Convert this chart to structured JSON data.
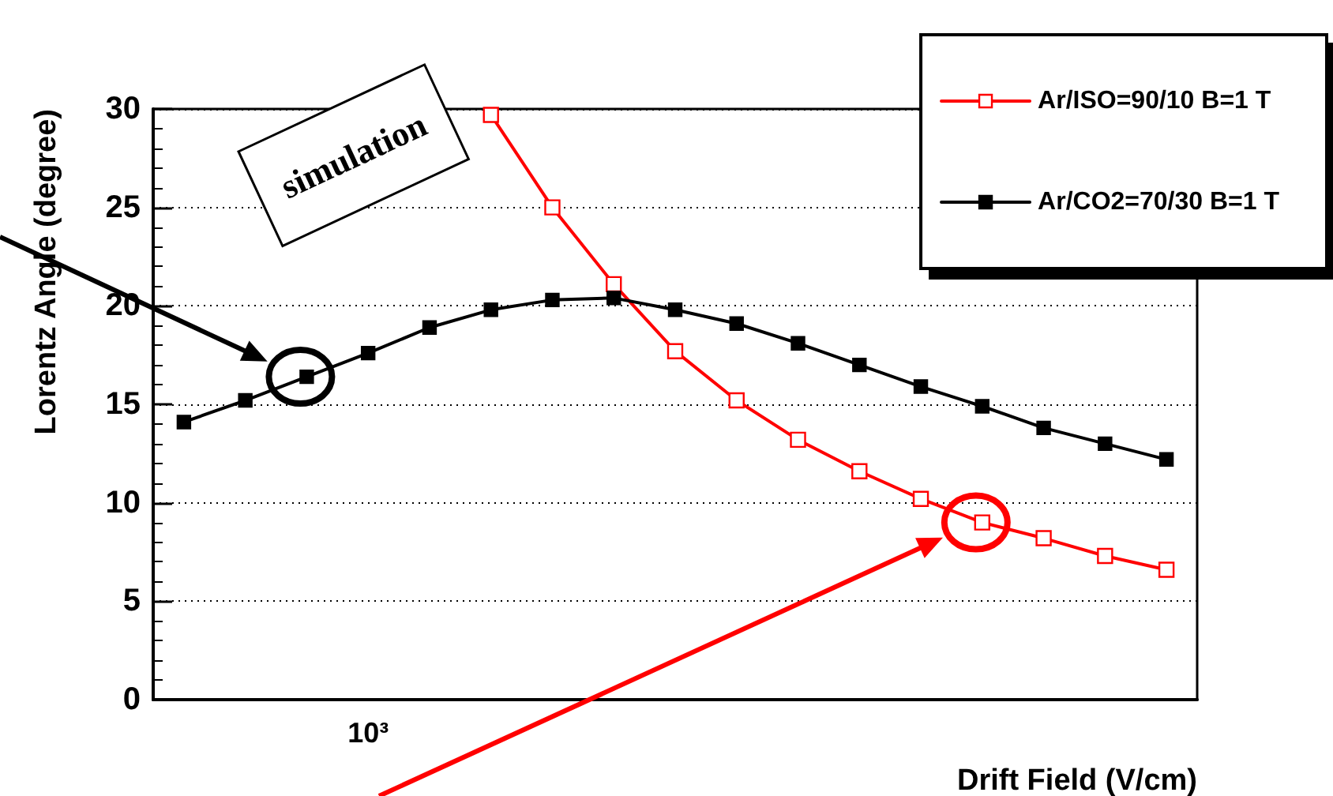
{
  "chart_data": {
    "type": "line",
    "xlabel": "Drift Field (V/cm)",
    "ylabel": "Lorentz Angle (degree)",
    "categories": [
      null,
      null,
      null,
      null,
      null,
      null,
      null,
      null,
      null,
      null,
      null,
      null,
      null,
      null,
      null,
      null,
      null
    ],
    "series": [
      {
        "name": "Ar/ISO=90/10 B=1 T",
        "color": "#ff0000",
        "marker": "square",
        "values": [
          null,
          null,
          null,
          null,
          null,
          29.7,
          25.0,
          21.1,
          17.7,
          15.2,
          13.2,
          11.6,
          10.2,
          9.0,
          8.2,
          7.3,
          6.6
        ]
      },
      {
        "name": "Ar/CO2=70/30 B=1 T",
        "color": "#000000",
        "marker": "square",
        "values": [
          14.1,
          15.2,
          16.4,
          17.6,
          18.9,
          19.8,
          20.3,
          20.4,
          19.8,
          19.1,
          18.1,
          17.0,
          15.9,
          14.9,
          13.8,
          13.0,
          12.2
        ]
      }
    ],
    "ylim": [
      0,
      30
    ],
    "yticks": [
      0,
      5,
      10,
      15,
      20,
      25,
      30
    ],
    "grid": "y",
    "legend": "top right",
    "line_style": "solid",
    "annotations": [
      "simulation",
      "10³"
    ]
  }
}
